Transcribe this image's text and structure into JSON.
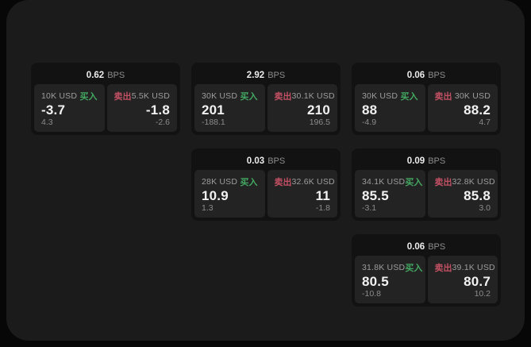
{
  "page": {
    "bps_unit": "BPS",
    "buy_label": "买入",
    "sell_label": "卖出",
    "colors": {
      "background": "#070708",
      "panel": "#1b1b1c",
      "card": "#121213",
      "tile": "#232324",
      "buy_accent": "#43a860",
      "sell_accent": "#c25063"
    }
  },
  "cards": [
    {
      "bps": "0.62",
      "col": 1,
      "row": 1,
      "buy": {
        "amount": "10K USD",
        "value": "-3.7",
        "delta": "4.3"
      },
      "sell": {
        "amount": "5.5K USD",
        "value": "-1.8",
        "delta": "-2.6"
      }
    },
    {
      "bps": "2.92",
      "col": 2,
      "row": 1,
      "buy": {
        "amount": "30K USD",
        "value": "201",
        "delta": "-188.1"
      },
      "sell": {
        "amount": "30.1K USD",
        "value": "210",
        "delta": "196.5"
      }
    },
    {
      "bps": "0.06",
      "col": 3,
      "row": 1,
      "buy": {
        "amount": "30K USD",
        "value": "88",
        "delta": "-4.9"
      },
      "sell": {
        "amount": "30K USD",
        "value": "88.2",
        "delta": "4.7"
      }
    },
    {
      "bps": "0.03",
      "col": 2,
      "row": 2,
      "buy": {
        "amount": "28K USD",
        "value": "10.9",
        "delta": "1.3"
      },
      "sell": {
        "amount": "32.6K USD",
        "value": "11",
        "delta": "-1.8"
      }
    },
    {
      "bps": "0.09",
      "col": 3,
      "row": 2,
      "buy": {
        "amount": "34.1K USD",
        "value": "85.5",
        "delta": "-3.1"
      },
      "sell": {
        "amount": "32.8K USD",
        "value": "85.8",
        "delta": "3.0"
      }
    },
    {
      "bps": "0.06",
      "col": 3,
      "row": 3,
      "buy": {
        "amount": "31.8K USD",
        "value": "80.5",
        "delta": "-10.8"
      },
      "sell": {
        "amount": "39.1K USD",
        "value": "80.7",
        "delta": "10.2"
      }
    }
  ]
}
